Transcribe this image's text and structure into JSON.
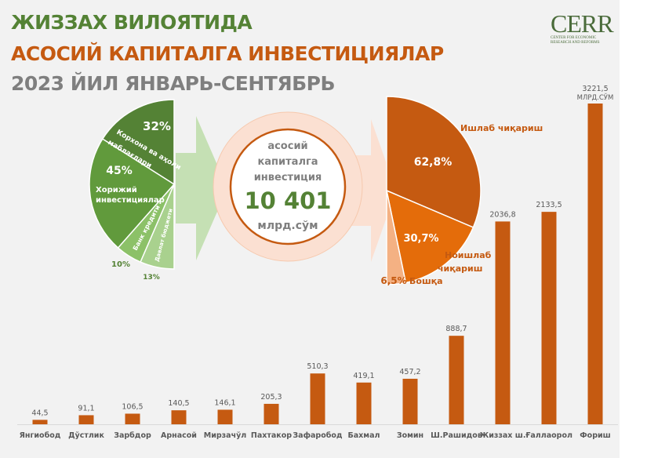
{
  "header": {
    "title_line1": "ЖИЗЗАХ ВИЛОЯТИДА",
    "title_line2": "АСОСИЙ КАПИТАЛГА ИНВЕСТИЦИЯЛАР",
    "title_line3": "2023 ЙИЛ ЯНВАРЬ-СЕНТЯБРЬ"
  },
  "logo": {
    "name": "CERR",
    "subtitle": "Center for Economic Research and Reforms"
  },
  "colors": {
    "green_dark": "#548235",
    "green_mid": "#70ad47",
    "green_light": "#a9d18e",
    "orange_dark": "#c55a11",
    "orange_mid": "#e46c0a",
    "orange_light": "#f4b183",
    "gray": "#7f7f7f"
  },
  "center": {
    "line1": "асосий",
    "line2": "капиталга",
    "line3": "инвестиция",
    "total": "10 401",
    "unit": "млрд.сўм"
  },
  "chart_data": [
    {
      "type": "pie",
      "slices": [
        {
          "label": "Корхона ва аҳоли маблағлари",
          "value": 32,
          "value_label": "32%",
          "color": "#548235"
        },
        {
          "label": "Хорижий инвестициялар",
          "value": 45,
          "value_label": "45%",
          "color": "#619a3c"
        },
        {
          "label": "Банк кредити",
          "value": 10,
          "value_label": "10%",
          "color": "#8cc168"
        },
        {
          "label": "Давлат бюджети",
          "value": 13,
          "value_label": "13%",
          "color": "#a9d18e"
        }
      ]
    },
    {
      "type": "pie",
      "slices": [
        {
          "label": "Ишлаб чиқариш",
          "value": 62.8,
          "value_label": "62,8%",
          "color": "#c55a11"
        },
        {
          "label": "Ноишлаб чиқариш",
          "value": 30.7,
          "value_label": "30,7%",
          "color": "#e46c0a"
        },
        {
          "label": "Бошқа",
          "value": 6.5,
          "value_label": "6,5%",
          "color": "#f4b183"
        }
      ]
    },
    {
      "type": "bar",
      "categories": [
        "Янгиобод",
        "Дўстлик",
        "Зарбдор",
        "Арнасой",
        "Мирзачўл",
        "Пахтакор",
        "Зафаробод",
        "Бахмал",
        "Зомин",
        "Ш.Рашидов",
        "Жиззах ш.",
        "Ғаллаорол",
        "Фориш"
      ],
      "values": [
        44.5,
        91.1,
        106.5,
        140.5,
        146.1,
        205.3,
        510.3,
        419.1,
        457.2,
        888.7,
        2036.8,
        2133.5,
        3221.5
      ],
      "value_labels": [
        "44,5",
        "91,1",
        "106,5",
        "140,5",
        "146,1",
        "205,3",
        "510,3",
        "419,1",
        "457,2",
        "888,7",
        "2036,8",
        "2133,5",
        "3221,5"
      ],
      "unit_label": "млрд.сўм",
      "color": "#c55a11",
      "ylim": [
        0,
        3221.5
      ],
      "grid": false
    }
  ]
}
